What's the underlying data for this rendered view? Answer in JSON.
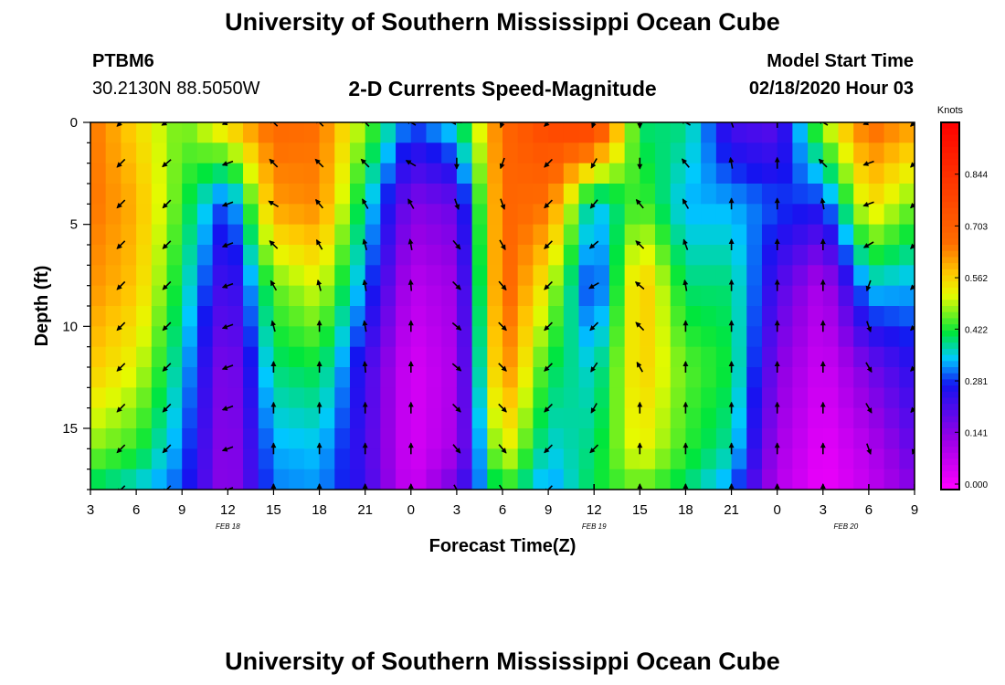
{
  "header": {
    "title": "University of Southern Mississippi Ocean Cube",
    "station": "PTBM6",
    "coordinates": "30.2130N 88.5050W",
    "subtitle": "2-D Currents Speed-Magnitude",
    "start_label": "Model Start Time",
    "start_value": "02/18/2020 Hour 03"
  },
  "footer": {
    "title": "University of Southern Mississippi Ocean Cube"
  },
  "chart_data": {
    "type": "heatmap",
    "title": "2-D Currents Speed-Magnitude",
    "xlabel": "Forecast Time(Z)",
    "ylabel": "Depth (ft)",
    "x_ticks": [
      "3",
      "6",
      "9",
      "12",
      "15",
      "18",
      "21",
      "0",
      "3",
      "6",
      "9",
      "12",
      "15",
      "18",
      "21",
      "0",
      "3",
      "6",
      "9"
    ],
    "date_labels": [
      {
        "text": "FEB 18",
        "at_tick": 3
      },
      {
        "text": "FEB 19",
        "at_tick": 11
      },
      {
        "text": "FEB 20",
        "at_tick": 16.5
      }
    ],
    "y_ticks": [
      0,
      5,
      10,
      15
    ],
    "ylim": [
      0,
      18
    ],
    "x_hours_range": [
      0,
      54
    ],
    "colorbar": {
      "unit": "Knots",
      "ticks": [
        "0.000",
        "0.141",
        "0.281",
        "0.422",
        "0.562",
        "0.703",
        "0.844"
      ],
      "range": [
        0,
        0.985
      ]
    },
    "speed_knots": {
      "time_hours": [
        0,
        3,
        6,
        9,
        12,
        15,
        18,
        21,
        24,
        27,
        30,
        33,
        36,
        39,
        42,
        45,
        48,
        51,
        54
      ],
      "depth_ft": [
        0,
        4,
        8,
        12,
        16,
        18
      ],
      "profiles": [
        [
          0.66,
          0.66,
          0.63,
          0.58,
          0.48,
          0.4
        ],
        [
          0.56,
          0.6,
          0.58,
          0.52,
          0.44,
          0.36
        ],
        [
          0.46,
          0.44,
          0.4,
          0.36,
          0.32,
          0.3
        ],
        [
          0.58,
          0.28,
          0.2,
          0.14,
          0.13,
          0.13
        ],
        [
          0.68,
          0.62,
          0.46,
          0.4,
          0.34,
          0.32
        ],
        [
          0.66,
          0.64,
          0.52,
          0.42,
          0.35,
          0.33
        ],
        [
          0.48,
          0.38,
          0.32,
          0.24,
          0.23,
          0.24
        ],
        [
          0.3,
          0.16,
          0.09,
          0.05,
          0.05,
          0.06
        ],
        [
          0.38,
          0.19,
          0.13,
          0.11,
          0.12,
          0.2
        ],
        [
          0.68,
          0.69,
          0.7,
          0.66,
          0.55,
          0.44
        ],
        [
          0.78,
          0.66,
          0.52,
          0.42,
          0.36,
          0.32
        ],
        [
          0.82,
          0.34,
          0.26,
          0.36,
          0.4,
          0.42
        ],
        [
          0.4,
          0.46,
          0.6,
          0.58,
          0.54,
          0.46
        ],
        [
          0.4,
          0.34,
          0.4,
          0.46,
          0.44,
          0.4
        ],
        [
          0.22,
          0.34,
          0.4,
          0.42,
          0.38,
          0.32
        ],
        [
          0.2,
          0.3,
          0.22,
          0.16,
          0.12,
          0.1
        ],
        [
          0.5,
          0.28,
          0.1,
          0.06,
          0.03,
          0.02
        ],
        [
          0.68,
          0.56,
          0.36,
          0.18,
          0.1,
          0.08
        ],
        [
          0.62,
          0.46,
          0.34,
          0.26,
          0.2,
          0.16
        ]
      ]
    },
    "current_direction_deg": {
      "time_hours": [
        2,
        5,
        9,
        12,
        15,
        18,
        21,
        24,
        27,
        30,
        33,
        36,
        39,
        42,
        45,
        48,
        51,
        54
      ],
      "depth_ft": [
        0,
        2,
        4,
        6,
        8,
        10,
        12,
        14,
        16,
        18
      ],
      "arrows": [
        [
          225,
          225,
          225,
          225,
          225,
          225,
          225,
          225,
          225,
          225
        ],
        [
          240,
          230,
          225,
          225,
          225,
          225,
          225,
          225,
          225,
          225
        ],
        [
          250,
          250,
          250,
          250,
          250,
          250,
          250,
          250,
          250,
          250
        ],
        [
          315,
          315,
          300,
          315,
          330,
          345,
          0,
          0,
          0,
          0
        ],
        [
          315,
          315,
          320,
          330,
          345,
          0,
          0,
          0,
          0,
          0
        ],
        [
          315,
          315,
          330,
          345,
          350,
          350,
          355,
          0,
          0,
          0
        ],
        [
          300,
          300,
          330,
          350,
          355,
          0,
          0,
          0,
          0,
          0
        ],
        [
          270,
          180,
          160,
          140,
          135,
          130,
          130,
          135,
          140,
          150
        ],
        [
          200,
          200,
          160,
          150,
          140,
          135,
          135,
          135,
          140,
          145
        ],
        [
          225,
          225,
          225,
          225,
          225,
          225,
          225,
          225,
          225,
          225
        ],
        [
          200,
          210,
          220,
          230,
          240,
          225,
          215,
          210,
          225,
          180
        ],
        [
          180,
          180,
          320,
          315,
          310,
          315,
          330,
          0,
          0,
          0
        ],
        [
          300,
          320,
          330,
          340,
          350,
          0,
          0,
          0,
          0,
          0
        ],
        [
          340,
          350,
          0,
          0,
          0,
          0,
          0,
          0,
          0,
          0
        ],
        [
          0,
          0,
          0,
          0,
          0,
          0,
          0,
          0,
          0,
          0
        ],
        [
          300,
          315,
          350,
          0,
          0,
          0,
          0,
          0,
          0,
          0
        ],
        [
          250,
          250,
          250,
          240,
          200,
          160,
          150,
          150,
          160,
          180
        ],
        [
          225,
          225,
          225,
          225,
          225,
          225,
          225,
          220,
          200,
          180
        ]
      ]
    }
  }
}
